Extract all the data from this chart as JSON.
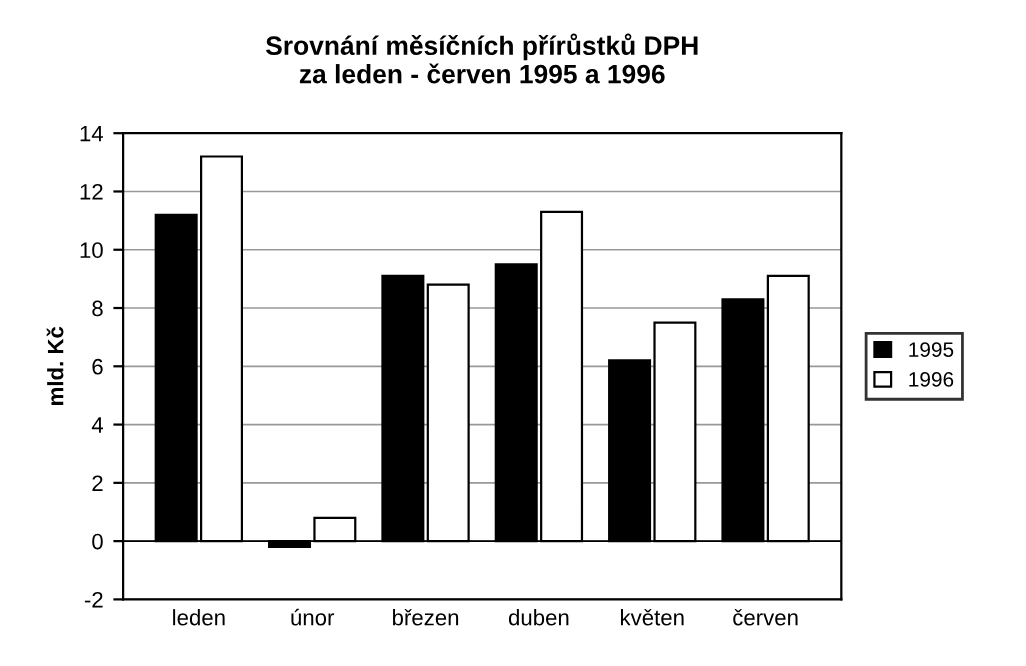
{
  "chart_data": {
    "type": "bar",
    "title": "Srovnání měsíčních přírůstků DPH\nza leden - červen 1995 a 1996",
    "ylabel": "mld. Kč",
    "categories": [
      "leden",
      "únor",
      "březen",
      "duben",
      "květen",
      "červen"
    ],
    "series": [
      {
        "name": "1995",
        "color": "#000000",
        "values": [
          11.2,
          -0.2,
          9.1,
          9.5,
          6.2,
          8.3
        ]
      },
      {
        "name": "1996",
        "color": "#ffffff",
        "values": [
          13.2,
          0.8,
          8.8,
          11.3,
          7.5,
          9.1
        ]
      }
    ],
    "ylim": [
      -2,
      14
    ],
    "yticks": [
      -2,
      0,
      2,
      4,
      6,
      8,
      10,
      12,
      14
    ],
    "grid": "y",
    "legend": "right"
  }
}
